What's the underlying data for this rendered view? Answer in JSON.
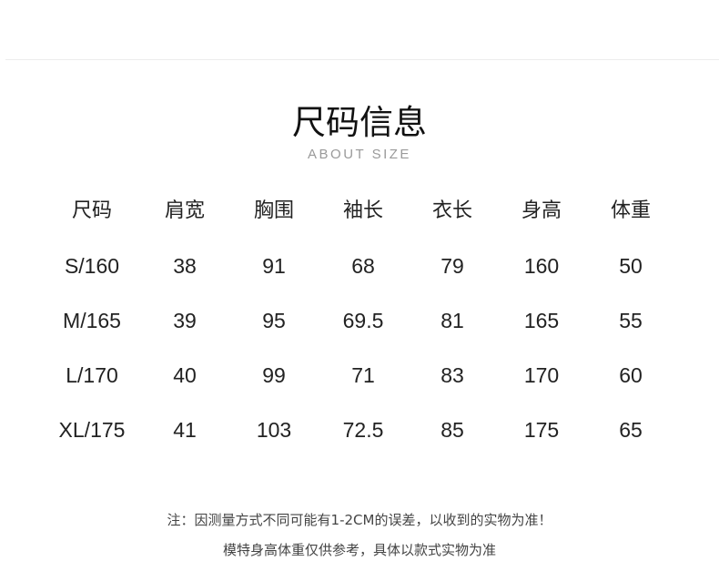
{
  "title": "尺码信息",
  "subtitle": "ABOUT SIZE",
  "table": {
    "headers": [
      "尺码",
      "肩宽",
      "胸围",
      "袖长",
      "衣长",
      "身高",
      "体重"
    ],
    "rows": [
      [
        "S/160",
        "38",
        "91",
        "68",
        "79",
        "160",
        "50"
      ],
      [
        "M/165",
        "39",
        "95",
        "69.5",
        "81",
        "165",
        "55"
      ],
      [
        "L/170",
        "40",
        "99",
        "71",
        "83",
        "170",
        "60"
      ],
      [
        "XL/175",
        "41",
        "103",
        "72.5",
        "85",
        "175",
        "65"
      ]
    ]
  },
  "notes": [
    "注：因测量方式不同可能有1-2CM的误差，以收到的实物为准！",
    "模特身高体重仅供参考，具体以款式实物为准"
  ]
}
